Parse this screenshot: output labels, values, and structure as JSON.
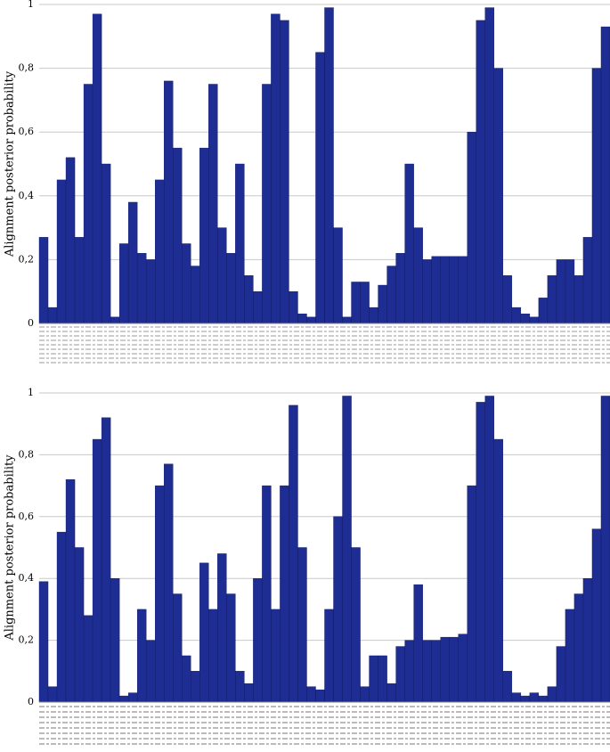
{
  "chart_data": [
    {
      "type": "bar",
      "ylabel": "Alignment posterior probability",
      "color": "#1e2d94",
      "grid": true,
      "ylim": [
        0,
        1
      ],
      "yticks": [
        0,
        {
          "value": 0.2,
          "label": "0,2"
        },
        {
          "value": 0.4,
          "label": "0,4"
        },
        {
          "value": 0.6,
          "label": "0,6"
        },
        {
          "value": 0.8,
          "label": "0,8"
        },
        1
      ],
      "values": [
        0.27,
        0.05,
        0.45,
        0.52,
        0.27,
        0.75,
        0.97,
        0.5,
        0.02,
        0.25,
        0.38,
        0.22,
        0.2,
        0.45,
        0.76,
        0.55,
        0.25,
        0.18,
        0.55,
        0.75,
        0.3,
        0.22,
        0.5,
        0.15,
        0.1,
        0.75,
        0.97,
        0.95,
        0.1,
        0.03,
        0.02,
        0.85,
        0.99,
        0.3,
        0.02,
        0.13,
        0.13,
        0.05,
        0.12,
        0.18,
        0.22,
        0.5,
        0.3,
        0.2,
        0.21,
        0.21,
        0.21,
        0.21,
        0.6,
        0.95,
        0.99,
        0.8,
        0.15,
        0.05,
        0.03,
        0.02,
        0.08,
        0.15,
        0.2,
        0.2,
        0.15,
        0.27,
        0.8,
        0.93
      ]
    },
    {
      "type": "bar",
      "ylabel": "Alignment posterior probability",
      "color": "#1e2d94",
      "grid": true,
      "ylim": [
        0,
        1
      ],
      "yticks": [
        0,
        {
          "value": 0.2,
          "label": "0,2"
        },
        {
          "value": 0.4,
          "label": "0,4"
        },
        {
          "value": 0.6,
          "label": "0,6"
        },
        {
          "value": 0.8,
          "label": "0,8"
        },
        1
      ],
      "values": [
        0.39,
        0.05,
        0.55,
        0.72,
        0.5,
        0.28,
        0.85,
        0.92,
        0.4,
        0.02,
        0.03,
        0.3,
        0.2,
        0.7,
        0.77,
        0.35,
        0.15,
        0.1,
        0.45,
        0.3,
        0.48,
        0.35,
        0.1,
        0.06,
        0.4,
        0.7,
        0.3,
        0.7,
        0.96,
        0.5,
        0.05,
        0.04,
        0.3,
        0.6,
        0.99,
        0.5,
        0.05,
        0.15,
        0.15,
        0.06,
        0.18,
        0.2,
        0.38,
        0.2,
        0.2,
        0.21,
        0.21,
        0.22,
        0.7,
        0.97,
        0.99,
        0.85,
        0.1,
        0.03,
        0.02,
        0.03,
        0.02,
        0.05,
        0.18,
        0.3,
        0.35,
        0.4,
        0.56,
        0.99
      ]
    }
  ]
}
